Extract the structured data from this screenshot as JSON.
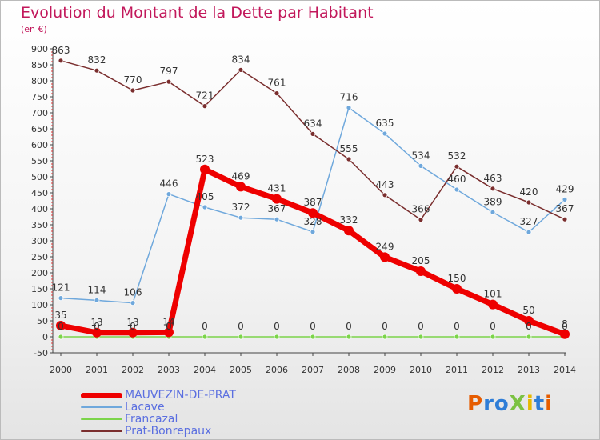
{
  "title": "Evolution du Montant de la Dette par Habitant",
  "subtitle": "(en €)",
  "logo": {
    "text": "ProXiti",
    "colors": [
      "#e65c00",
      "#2e7dd7",
      "#2e7dd7",
      "#7cc242",
      "#e6b800",
      "#2e7dd7",
      "#e65c00"
    ]
  },
  "chart_data": {
    "type": "line",
    "x": [
      "2000",
      "2001",
      "2002",
      "2003",
      "2004",
      "2005",
      "2006",
      "2007",
      "2008",
      "2009",
      "2010",
      "2011",
      "2012",
      "2013",
      "2014"
    ],
    "ylim": [
      -50,
      900
    ],
    "yticks": [
      -50,
      0,
      50,
      100,
      150,
      200,
      250,
      300,
      350,
      400,
      450,
      500,
      550,
      600,
      650,
      700,
      750,
      800,
      850,
      900
    ],
    "grid": false,
    "legend_position": "bottom-left",
    "series": [
      {
        "name": "MAUVEZIN-DE-PRAT",
        "color": "#ee0000",
        "labelColor": "#333333",
        "width": 7,
        "marker": 6,
        "values": [
          35,
          13,
          13,
          14,
          523,
          469,
          431,
          387,
          332,
          249,
          205,
          150,
          101,
          50,
          8
        ],
        "labels": [
          "35",
          "13",
          "13",
          "14",
          "523",
          "469",
          "431",
          "387",
          "332",
          "249",
          "205",
          "150",
          "101",
          "50",
          "8"
        ]
      },
      {
        "name": "Lacave",
        "color": "#6fa8dc",
        "labelColor": "#333333",
        "width": 1.5,
        "marker": 3,
        "values": [
          121,
          114,
          106,
          446,
          405,
          372,
          367,
          328,
          716,
          635,
          534,
          460,
          389,
          327,
          429
        ],
        "labels": [
          "121",
          "114",
          "106",
          "446",
          "405",
          "372",
          "367",
          "328",
          "716",
          "635",
          "534",
          "460",
          "389",
          "327",
          "429"
        ]
      },
      {
        "name": "Francazal",
        "color": "#7cd44a",
        "labelColor": "#333333",
        "width": 1.5,
        "marker": 3,
        "values": [
          0,
          0,
          0,
          0,
          0,
          0,
          0,
          0,
          0,
          0,
          0,
          0,
          0,
          0,
          0
        ],
        "labels": [
          "0",
          "0",
          "0",
          "0",
          "0",
          "0",
          "0",
          "0",
          "0",
          "0",
          "0",
          "0",
          "0",
          "0",
          "0"
        ]
      },
      {
        "name": "Prat-Bonrepaux",
        "color": "#7a2e2e",
        "labelColor": "#333333",
        "width": 1.5,
        "marker": 3,
        "values": [
          863,
          832,
          770,
          797,
          721,
          834,
          761,
          634,
          555,
          443,
          366,
          532,
          463,
          420,
          367
        ],
        "labels": [
          "863",
          "832",
          "770",
          "797",
          "721",
          "834",
          "761",
          "634",
          "555",
          "443",
          "366",
          "532",
          "463",
          "420",
          "367"
        ]
      }
    ]
  }
}
